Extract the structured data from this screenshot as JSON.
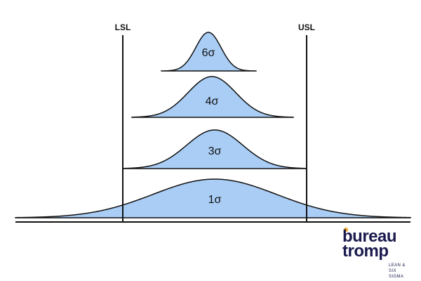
{
  "spec_limits": {
    "lsl_label": "LSL",
    "usl_label": "USL"
  },
  "curves": [
    {
      "id": "six",
      "label": "6σ"
    },
    {
      "id": "four",
      "label": "4σ"
    },
    {
      "id": "three",
      "label": "3σ"
    },
    {
      "id": "one",
      "label": "1σ"
    }
  ],
  "logo": {
    "line1": "bureau",
    "line2": "tromp",
    "sub1": "LEAN &",
    "sub2": "SIX SIGMA",
    "text_color": "#1a1a4e",
    "accent_color": "#f5a623"
  },
  "colors": {
    "curve_fill": "#a9cdf5",
    "stroke": "#111111",
    "background": "#ffffff"
  }
}
